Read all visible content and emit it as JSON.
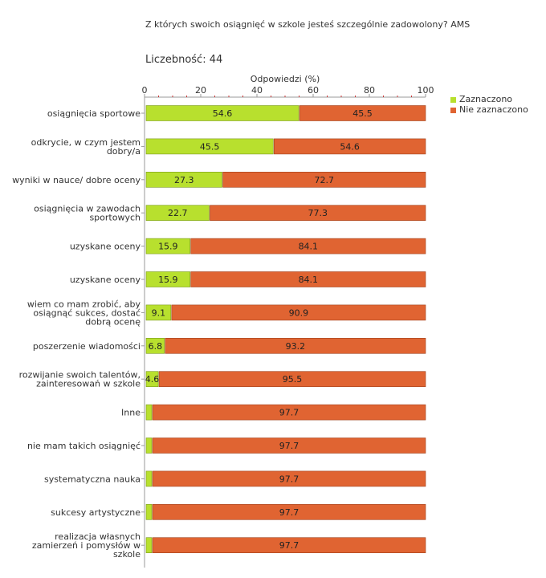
{
  "chart_data": {
    "type": "bar",
    "orientation": "horizontal",
    "stacked": true,
    "title": "Z których swoich osiągnięć w szkole jesteś szczególnie zadowolony? AMS",
    "subtitle": "Liczebność: 44",
    "xlabel": "Odpowiedzi (%)",
    "xlim": [
      0,
      100
    ],
    "xticks": [
      "0",
      "20",
      "40",
      "60",
      "80",
      "100"
    ],
    "categories": [
      [
        "osiągnięcia sportowe"
      ],
      [
        "odkrycie, w czym jestem",
        "dobry/a"
      ],
      [
        "wyniki w nauce/ dobre oceny"
      ],
      [
        "osiągnięcia w zawodach",
        "sportowych"
      ],
      [
        "uzyskane oceny"
      ],
      [
        "uzyskane oceny"
      ],
      [
        "wiem co mam zrobić, aby",
        "osiągnąć sukces, dostać",
        "dobrą ocenę"
      ],
      [
        "poszerzenie wiadomości"
      ],
      [
        "rozwijanie swoich talentów,",
        "zainteresowań w szkole"
      ],
      [
        "Inne"
      ],
      [
        "nie mam takich osiągnięć"
      ],
      [
        "systematyczna nauka"
      ],
      [
        "sukcesy artystyczne"
      ],
      [
        "realizacja własnych",
        "zamierzeń i pomysłów w",
        "szkole"
      ]
    ],
    "series": [
      {
        "name": "Zaznaczono",
        "color": "#b8e02e",
        "values": [
          54.6,
          45.5,
          27.3,
          22.7,
          15.9,
          15.9,
          9.1,
          6.8,
          4.6,
          2.3,
          2.3,
          2.3,
          2.3,
          2.3
        ],
        "labels": [
          "54.6",
          "45.5",
          "27.3",
          "22.7",
          "15.9",
          "15.9",
          "9.1",
          "6.8",
          "4.6",
          "",
          "",
          "",
          "",
          ""
        ]
      },
      {
        "name": "Nie zaznaczono",
        "color": "#e06432",
        "values": [
          45.5,
          54.6,
          72.7,
          77.3,
          84.1,
          84.1,
          90.9,
          93.2,
          95.5,
          97.7,
          97.7,
          97.7,
          97.7,
          97.7
        ],
        "labels": [
          "45.5",
          "54.6",
          "72.7",
          "77.3",
          "84.1",
          "84.1",
          "90.9",
          "93.2",
          "95.5",
          "97.7",
          "97.7",
          "97.7",
          "97.7",
          "97.7"
        ]
      }
    ]
  }
}
